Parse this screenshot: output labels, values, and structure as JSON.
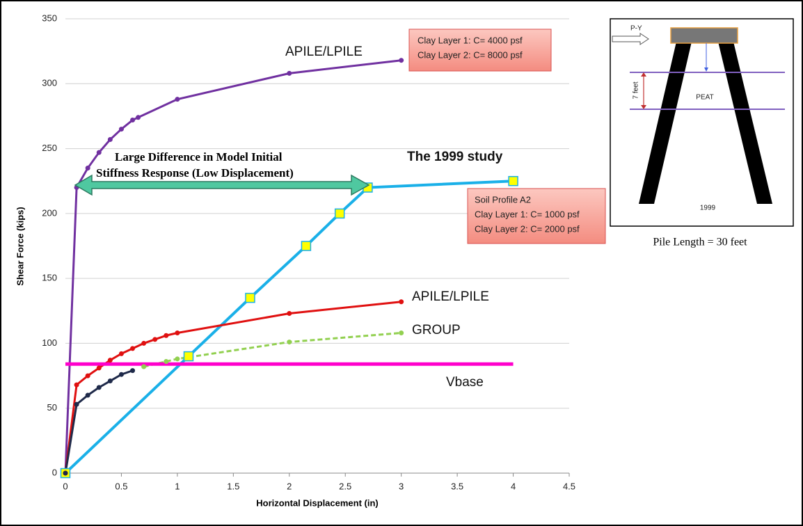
{
  "chart_data": {
    "type": "line",
    "x_label": "Horizontal Displacement (in)",
    "y_label": "Shear Force (kips)",
    "xlim": [
      0,
      4.5
    ],
    "xticks": [
      0,
      0.5,
      1,
      1.5,
      2,
      2.5,
      3,
      3.5,
      4,
      4.5
    ],
    "ylim": [
      0,
      350
    ],
    "yticks": [
      0,
      50,
      100,
      150,
      200,
      250,
      300,
      350
    ],
    "grid": true,
    "series": [
      {
        "name": "APILE/LPILE",
        "color": "#7030a0",
        "marker": "circle",
        "dashed": false,
        "x": [
          0,
          0.1,
          0.2,
          0.3,
          0.4,
          0.5,
          0.6,
          0.65,
          1,
          2,
          3
        ],
        "values": [
          0,
          220,
          235,
          247,
          257,
          265,
          272,
          274,
          288,
          308,
          318
        ]
      },
      {
        "name": "The 1999 study",
        "color": "#1ab0e8",
        "marker": "square",
        "dashed": false,
        "x": [
          0,
          1.1,
          1.65,
          2.15,
          2.45,
          2.7,
          4
        ],
        "values": [
          0,
          90,
          135,
          175,
          200,
          220,
          225
        ]
      },
      {
        "name": "APILE/LPILE",
        "color": "#e01010",
        "marker": "circle",
        "dashed": false,
        "x": [
          0,
          0.1,
          0.2,
          0.3,
          0.4,
          0.5,
          0.6,
          0.7,
          0.8,
          0.9,
          1,
          2,
          3
        ],
        "values": [
          0,
          68,
          75,
          81,
          87,
          92,
          96,
          100,
          103,
          106,
          108,
          123,
          132
        ]
      },
      {
        "name": "GROUP",
        "color": "#92d050",
        "marker": "circle",
        "dashed": true,
        "x": [
          0.7,
          0.9,
          1,
          2,
          3
        ],
        "values": [
          82,
          86,
          88,
          101,
          108
        ]
      },
      {
        "color": "#1f2a4a",
        "marker": "circle",
        "dashed": false,
        "x": [
          0,
          0.1,
          0.2,
          0.3,
          0.4,
          0.5,
          0.6
        ],
        "values": [
          0,
          53,
          60,
          66,
          71,
          76,
          79
        ]
      },
      {
        "name": "Vbase",
        "color": "#ff00cc",
        "marker": "none",
        "dashed": false,
        "x": [
          0,
          4
        ],
        "values": [
          84,
          84
        ]
      }
    ],
    "annotations": {
      "difference": [
        "Large Difference in Model Initial",
        "Stiffness Response (Low Displacement)"
      ],
      "box_high": [
        "Clay Layer 1: C= 4000 psf",
        "Clay Layer 2: C= 8000 psf"
      ],
      "box_low": [
        "Soil Profile A2",
        "Clay Layer 1: C= 1000 psf",
        "Clay Layer 2: C= 2000 psf"
      ]
    }
  },
  "inset": {
    "load": "P-Y",
    "depth": "7 feet",
    "layer": "PEAT",
    "year": "1999",
    "caption": "Pile Length = 30 feet"
  }
}
